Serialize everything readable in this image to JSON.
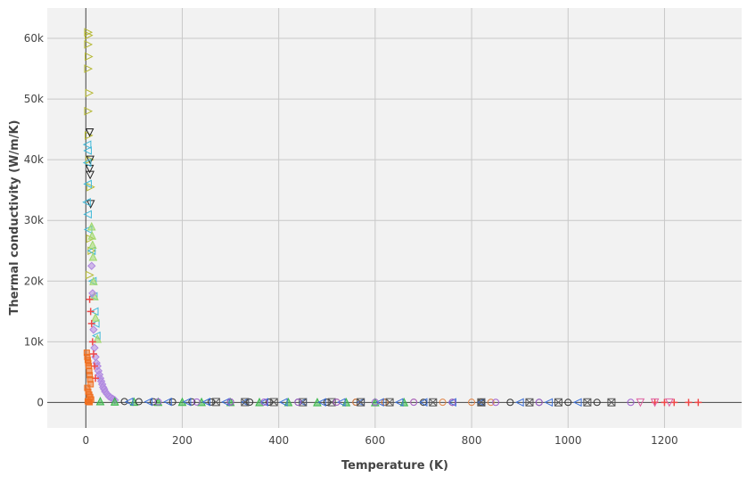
{
  "chart_data": {
    "type": "scatter",
    "xlabel": "Temperature (K)",
    "ylabel": "Thermal conductivity (W/m/K)",
    "xlim": [
      -80,
      1360
    ],
    "ylim": [
      -4200,
      65000
    ],
    "xticks": [
      {
        "value": 0,
        "label": "0"
      },
      {
        "value": 200,
        "label": "200"
      },
      {
        "value": 400,
        "label": "400"
      },
      {
        "value": 600,
        "label": "600"
      },
      {
        "value": 800,
        "label": "800"
      },
      {
        "value": 1000,
        "label": "1000"
      },
      {
        "value": 1200,
        "label": "1200"
      }
    ],
    "yticks": [
      {
        "value": 0,
        "label": "0"
      },
      {
        "value": 10000,
        "label": "10k"
      },
      {
        "value": 20000,
        "label": "20k"
      },
      {
        "value": 30000,
        "label": "30k"
      },
      {
        "value": 40000,
        "label": "40k"
      },
      {
        "value": 50000,
        "label": "50k"
      },
      {
        "value": 60000,
        "label": "60k"
      }
    ],
    "grid": true,
    "legend": "none",
    "background": "#f2f2f2",
    "series": [
      {
        "color": "#b5b832",
        "marker": "triangle-right",
        "x": [
          5,
          6,
          5,
          6,
          5,
          7,
          5,
          6,
          8,
          10,
          9,
          12,
          8
        ],
        "y": [
          61000,
          60500,
          59000,
          57000,
          55000,
          51000,
          48000,
          44000,
          40000,
          35500,
          27000,
          25000,
          21000
        ]
      },
      {
        "color": "#222222",
        "marker": "triangle-down",
        "x": [
          8,
          9,
          8,
          9,
          10
        ],
        "y": [
          44500,
          40000,
          38500,
          37500,
          32700
        ]
      },
      {
        "color": "#3fb8d8",
        "marker": "triangle-left",
        "x": [
          3,
          4,
          3,
          4,
          2,
          4,
          5,
          12,
          14,
          16,
          18,
          20,
          22
        ],
        "y": [
          42500,
          41500,
          39500,
          36000,
          33000,
          31000,
          28500,
          25000,
          20000,
          17500,
          15000,
          13000,
          11000
        ]
      },
      {
        "color": "#9fd86a",
        "marker": "triangle-up",
        "x": [
          12,
          13,
          14,
          15,
          16,
          18,
          20,
          24
        ],
        "y": [
          29000,
          27500,
          26000,
          24000,
          20000,
          17500,
          14000,
          10500
        ]
      },
      {
        "color": "#b088e0",
        "marker": "diamond",
        "x": [
          12,
          14,
          16,
          18,
          20,
          22,
          24,
          26,
          28,
          30,
          32,
          34,
          36,
          38,
          40,
          44,
          48,
          52,
          56,
          60
        ],
        "y": [
          22500,
          18000,
          12000,
          9000,
          7500,
          6500,
          6000,
          5200,
          4600,
          4000,
          3500,
          3000,
          2500,
          2200,
          1800,
          1400,
          1000,
          800,
          600,
          400
        ]
      },
      {
        "color": "#f04848",
        "marker": "cross",
        "x": [
          8,
          10,
          12,
          14,
          16,
          18,
          20,
          1180,
          1200,
          1220,
          1250,
          1270
        ],
        "y": [
          17000,
          15000,
          13000,
          10000,
          8000,
          6000,
          4000,
          0,
          0,
          0,
          0,
          0
        ]
      },
      {
        "color": "#f07020",
        "marker": "square",
        "x": [
          2,
          3,
          4,
          5,
          6,
          7,
          8,
          9,
          10,
          3,
          5,
          7,
          9,
          11,
          4,
          6,
          8
        ],
        "y": [
          8200,
          7500,
          7000,
          6500,
          6000,
          5200,
          4500,
          3800,
          3000,
          2400,
          1800,
          1300,
          900,
          500,
          200,
          100,
          50
        ]
      },
      {
        "color": "#3ab84a",
        "marker": "triangle-up",
        "x": [
          30,
          60,
          100,
          150,
          200,
          240,
          300,
          360,
          420,
          480,
          540,
          600,
          660
        ],
        "y": [
          200,
          150,
          120,
          100,
          90,
          80,
          70,
          60,
          55,
          50,
          45,
          40,
          35
        ]
      },
      {
        "color": "#333333",
        "marker": "circle",
        "x": [
          80,
          110,
          140,
          180,
          220,
          260,
          300,
          340,
          380,
          440,
          500,
          560,
          620,
          700,
          760,
          820,
          880,
          940,
          1000,
          1060
        ],
        "y": [
          160,
          140,
          120,
          100,
          90,
          80,
          70,
          60,
          55,
          50,
          45,
          40,
          35,
          30,
          28,
          25,
          22,
          20,
          18,
          16
        ]
      },
      {
        "color": "#e08040",
        "marker": "circle",
        "x": [
          520,
          560,
          620,
          680,
          740,
          800,
          840
        ],
        "y": [
          60,
          55,
          50,
          45,
          40,
          35,
          30
        ]
      },
      {
        "color": "#3a6fd8",
        "marker": "triangle-left",
        "x": [
          90,
          130,
          170,
          210,
          250,
          290,
          330,
          370,
          410,
          450,
          490,
          530,
          570,
          610,
          650,
          700,
          760,
          820,
          900,
          960,
          1020
        ],
        "y": [
          120,
          110,
          100,
          90,
          80,
          70,
          60,
          55,
          50,
          45,
          40,
          38,
          35,
          32,
          30,
          28,
          25,
          22,
          20,
          18,
          15
        ]
      },
      {
        "color": "#555555",
        "marker": "square-x",
        "x": [
          270,
          330,
          390,
          450,
          510,
          570,
          630,
          720,
          820,
          920,
          980,
          1040,
          1090
        ],
        "y": [
          70,
          60,
          55,
          50,
          45,
          40,
          35,
          30,
          28,
          25,
          22,
          20,
          18
        ]
      },
      {
        "color": "#a060d0",
        "marker": "circle",
        "x": [
          150,
          230,
          300,
          370,
          440,
          520,
          600,
          680,
          760,
          850,
          940,
          1130
        ],
        "y": [
          90,
          80,
          70,
          60,
          50,
          45,
          40,
          35,
          30,
          25,
          20,
          15
        ]
      },
      {
        "color": "#e060a0",
        "marker": "triangle-down",
        "x": [
          1150,
          1180,
          1210
        ],
        "y": [
          10,
          10,
          10
        ]
      }
    ]
  }
}
